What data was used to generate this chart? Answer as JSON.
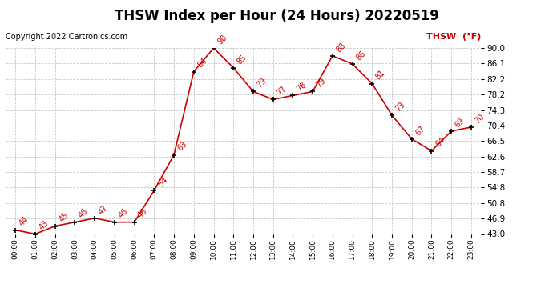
{
  "title": "THSW Index per Hour (24 Hours) 20220519",
  "copyright": "Copyright 2022 Cartronics.com",
  "legend_label": "THSW  (°F)",
  "hours": [
    0,
    1,
    2,
    3,
    4,
    5,
    6,
    7,
    8,
    9,
    10,
    11,
    12,
    13,
    14,
    15,
    16,
    17,
    18,
    19,
    20,
    21,
    22,
    23
  ],
  "hour_labels": [
    "00:00",
    "01:00",
    "02:00",
    "03:00",
    "04:00",
    "05:00",
    "06:00",
    "07:00",
    "08:00",
    "09:00",
    "10:00",
    "11:00",
    "12:00",
    "13:00",
    "14:00",
    "15:00",
    "16:00",
    "17:00",
    "18:00",
    "19:00",
    "20:00",
    "21:00",
    "22:00",
    "23:00"
  ],
  "values": [
    44,
    43,
    45,
    46,
    47,
    46,
    46,
    54,
    63,
    84,
    90,
    85,
    79,
    77,
    78,
    79,
    88,
    86,
    81,
    73,
    67,
    64,
    69,
    70
  ],
  "yticks": [
    43.0,
    46.9,
    50.8,
    54.8,
    58.7,
    62.6,
    66.5,
    70.4,
    74.3,
    78.2,
    82.2,
    86.1,
    90.0
  ],
  "ylim_min": 43.0,
  "ylim_max": 90.0,
  "line_color": "#cc0000",
  "marker_color": "#000000",
  "bg_color": "#ffffff",
  "grid_color": "#c8c8c8",
  "title_fontsize": 12,
  "annotation_fontsize": 7,
  "legend_color": "#cc0000",
  "copyright_fontsize": 7,
  "tick_fontsize": 7.5,
  "xtick_fontsize": 6.5
}
